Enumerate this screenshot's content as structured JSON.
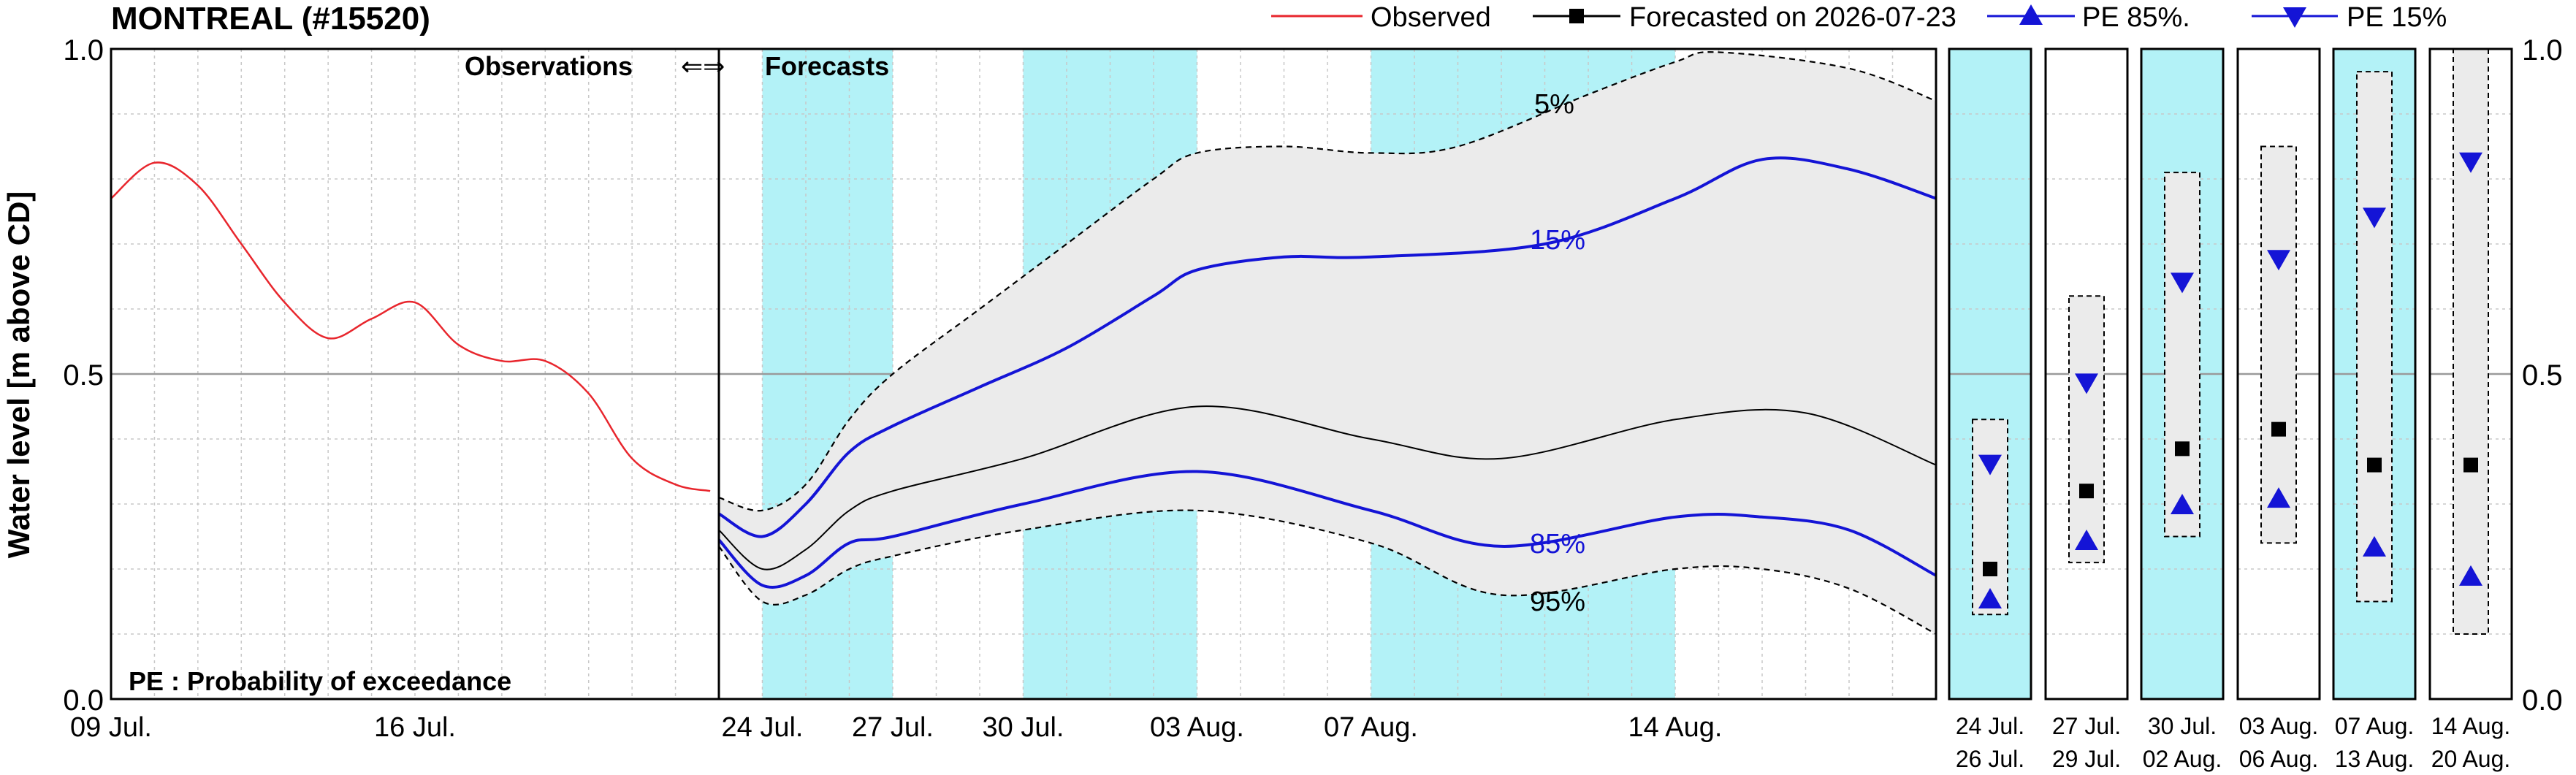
{
  "title": "MONTREAL (#15520)",
  "legend": {
    "observed": "Observed",
    "forecasted": "Forecasted on 2026-07-23",
    "pe85": "PE 85%.",
    "pe15": "PE 15%"
  },
  "annotations": {
    "observations": "Observations",
    "arrows": "⇐⇒",
    "forecasts": "Forecasts",
    "pe_note": "PE : Probability of exceedance",
    "p5": "5%",
    "p15": "15%",
    "p85": "85%",
    "p95": "95%"
  },
  "colors": {
    "observed": "#e8262d",
    "pe": "#1414d6",
    "median": "#000000",
    "band": "#ebebeb",
    "highlight": "#b3f2f7"
  },
  "chart_data": {
    "type": "line",
    "ylabel": "Water level [m above CD]",
    "ylim": [
      0.0,
      1.0
    ],
    "yticks": [
      "0.0",
      "0.5",
      "1.0"
    ],
    "grid": true,
    "legend_position": "top-right",
    "obs_axis": {
      "x_range": [
        "2026-07-09",
        "2026-07-23"
      ],
      "tick_labels": [
        "09 Jul.",
        "16 Jul."
      ]
    },
    "fc_axis": {
      "x_range": [
        "2026-07-23",
        "2026-08-20"
      ],
      "tick_labels": [
        "24 Jul.",
        "27 Jul.",
        "30 Jul.",
        "03 Aug.",
        "07 Aug.",
        "14 Aug."
      ],
      "highlight_periods": [
        [
          "2026-07-24",
          "2026-07-27"
        ],
        [
          "2026-07-30",
          "2026-08-03"
        ],
        [
          "2026-08-07",
          "2026-08-14"
        ]
      ]
    },
    "observed": [
      {
        "x": "2026-07-09",
        "y": 0.77
      },
      {
        "x": "2026-07-10",
        "y": 0.825
      },
      {
        "x": "2026-07-11",
        "y": 0.79
      },
      {
        "x": "2026-07-12",
        "y": 0.7
      },
      {
        "x": "2026-07-13",
        "y": 0.61
      },
      {
        "x": "2026-07-14",
        "y": 0.555
      },
      {
        "x": "2026-07-15",
        "y": 0.585
      },
      {
        "x": "2026-07-16",
        "y": 0.61
      },
      {
        "x": "2026-07-17",
        "y": 0.545
      },
      {
        "x": "2026-07-18",
        "y": 0.52
      },
      {
        "x": "2026-07-19",
        "y": 0.52
      },
      {
        "x": "2026-07-20",
        "y": 0.47
      },
      {
        "x": "2026-07-21",
        "y": 0.37
      },
      {
        "x": "2026-07-22",
        "y": 0.33
      },
      {
        "x": "2026-07-22.8",
        "y": 0.32
      }
    ],
    "forecast_series": [
      {
        "name": "5%",
        "style": "dashed",
        "points": [
          {
            "x": "2026-07-23",
            "y": 0.31
          },
          {
            "x": "2026-07-24",
            "y": 0.29
          },
          {
            "x": "2026-07-25",
            "y": 0.33
          },
          {
            "x": "2026-07-26",
            "y": 0.43
          },
          {
            "x": "2026-07-27",
            "y": 0.5
          },
          {
            "x": "2026-07-29",
            "y": 0.6
          },
          {
            "x": "2026-07-31",
            "y": 0.7
          },
          {
            "x": "2026-08-02",
            "y": 0.8
          },
          {
            "x": "2026-08-03",
            "y": 0.84
          },
          {
            "x": "2026-08-05",
            "y": 0.85
          },
          {
            "x": "2026-08-07",
            "y": 0.84
          },
          {
            "x": "2026-08-09",
            "y": 0.85
          },
          {
            "x": "2026-08-12",
            "y": 0.93
          },
          {
            "x": "2026-08-14",
            "y": 0.98
          },
          {
            "x": "2026-08-15",
            "y": 0.995
          },
          {
            "x": "2026-08-18",
            "y": 0.97
          },
          {
            "x": "2026-08-20",
            "y": 0.92
          }
        ]
      },
      {
        "name": "15%",
        "style": "pe",
        "points": [
          {
            "x": "2026-07-23",
            "y": 0.285
          },
          {
            "x": "2026-07-24",
            "y": 0.25
          },
          {
            "x": "2026-07-25",
            "y": 0.3
          },
          {
            "x": "2026-07-26",
            "y": 0.38
          },
          {
            "x": "2026-07-27",
            "y": 0.42
          },
          {
            "x": "2026-07-29",
            "y": 0.48
          },
          {
            "x": "2026-07-31",
            "y": 0.54
          },
          {
            "x": "2026-08-02",
            "y": 0.62
          },
          {
            "x": "2026-08-03",
            "y": 0.66
          },
          {
            "x": "2026-08-05",
            "y": 0.68
          },
          {
            "x": "2026-08-07",
            "y": 0.68
          },
          {
            "x": "2026-08-11",
            "y": 0.7
          },
          {
            "x": "2026-08-14",
            "y": 0.77
          },
          {
            "x": "2026-08-16",
            "y": 0.83
          },
          {
            "x": "2026-08-18",
            "y": 0.815
          },
          {
            "x": "2026-08-20",
            "y": 0.77
          }
        ]
      },
      {
        "name": "Forecasted on 2026-07-23",
        "style": "median",
        "points": [
          {
            "x": "2026-07-23",
            "y": 0.26
          },
          {
            "x": "2026-07-24",
            "y": 0.2
          },
          {
            "x": "2026-07-25",
            "y": 0.23
          },
          {
            "x": "2026-07-26",
            "y": 0.29
          },
          {
            "x": "2026-07-27",
            "y": 0.32
          },
          {
            "x": "2026-07-30",
            "y": 0.37
          },
          {
            "x": "2026-08-03",
            "y": 0.45
          },
          {
            "x": "2026-08-07",
            "y": 0.4
          },
          {
            "x": "2026-08-10",
            "y": 0.37
          },
          {
            "x": "2026-08-14",
            "y": 0.43
          },
          {
            "x": "2026-08-17",
            "y": 0.44
          },
          {
            "x": "2026-08-20",
            "y": 0.36
          }
        ]
      },
      {
        "name": "85%",
        "style": "pe",
        "points": [
          {
            "x": "2026-07-23",
            "y": 0.245
          },
          {
            "x": "2026-07-24",
            "y": 0.175
          },
          {
            "x": "2026-07-25",
            "y": 0.19
          },
          {
            "x": "2026-07-26",
            "y": 0.24
          },
          {
            "x": "2026-07-27",
            "y": 0.25
          },
          {
            "x": "2026-07-30",
            "y": 0.3
          },
          {
            "x": "2026-08-03",
            "y": 0.35
          },
          {
            "x": "2026-08-07",
            "y": 0.29
          },
          {
            "x": "2026-08-10",
            "y": 0.235
          },
          {
            "x": "2026-08-14",
            "y": 0.28
          },
          {
            "x": "2026-08-16",
            "y": 0.28
          },
          {
            "x": "2026-08-18",
            "y": 0.26
          },
          {
            "x": "2026-08-20",
            "y": 0.19
          }
        ]
      },
      {
        "name": "95%",
        "style": "dashed",
        "points": [
          {
            "x": "2026-07-23",
            "y": 0.235
          },
          {
            "x": "2026-07-24",
            "y": 0.15
          },
          {
            "x": "2026-07-25",
            "y": 0.16
          },
          {
            "x": "2026-07-26",
            "y": 0.2
          },
          {
            "x": "2026-07-27",
            "y": 0.22
          },
          {
            "x": "2026-07-30",
            "y": 0.26
          },
          {
            "x": "2026-08-03",
            "y": 0.29
          },
          {
            "x": "2026-08-07",
            "y": 0.24
          },
          {
            "x": "2026-08-10",
            "y": 0.16
          },
          {
            "x": "2026-08-14",
            "y": 0.2
          },
          {
            "x": "2026-08-16",
            "y": 0.2
          },
          {
            "x": "2026-08-18",
            "y": 0.17
          },
          {
            "x": "2026-08-20",
            "y": 0.1
          }
        ]
      }
    ],
    "period_panels": [
      {
        "top": "24  Jul.",
        "bottom": "26  Jul.",
        "highlight": true,
        "range": [
          0.13,
          0.43
        ],
        "pe15": 0.36,
        "median": 0.2,
        "pe85": 0.155
      },
      {
        "top": "27  Jul.",
        "bottom": "29  Jul.",
        "highlight": false,
        "range": [
          0.21,
          0.62
        ],
        "pe15": 0.485,
        "median": 0.32,
        "pe85": 0.245
      },
      {
        "top": "30  Jul.",
        "bottom": "02  Aug.",
        "highlight": true,
        "range": [
          0.25,
          0.81
        ],
        "pe15": 0.64,
        "median": 0.385,
        "pe85": 0.3
      },
      {
        "top": "03  Aug.",
        "bottom": "06  Aug.",
        "highlight": false,
        "range": [
          0.24,
          0.85
        ],
        "pe15": 0.675,
        "median": 0.415,
        "pe85": 0.31
      },
      {
        "top": "07  Aug.",
        "bottom": "13  Aug.",
        "highlight": true,
        "range": [
          0.15,
          0.965
        ],
        "pe15": 0.74,
        "median": 0.36,
        "pe85": 0.235
      },
      {
        "top": "14  Aug.",
        "bottom": "20  Aug.",
        "highlight": false,
        "range": [
          0.1,
          1.0
        ],
        "pe15": 0.825,
        "median": 0.36,
        "pe85": 0.19
      }
    ]
  }
}
